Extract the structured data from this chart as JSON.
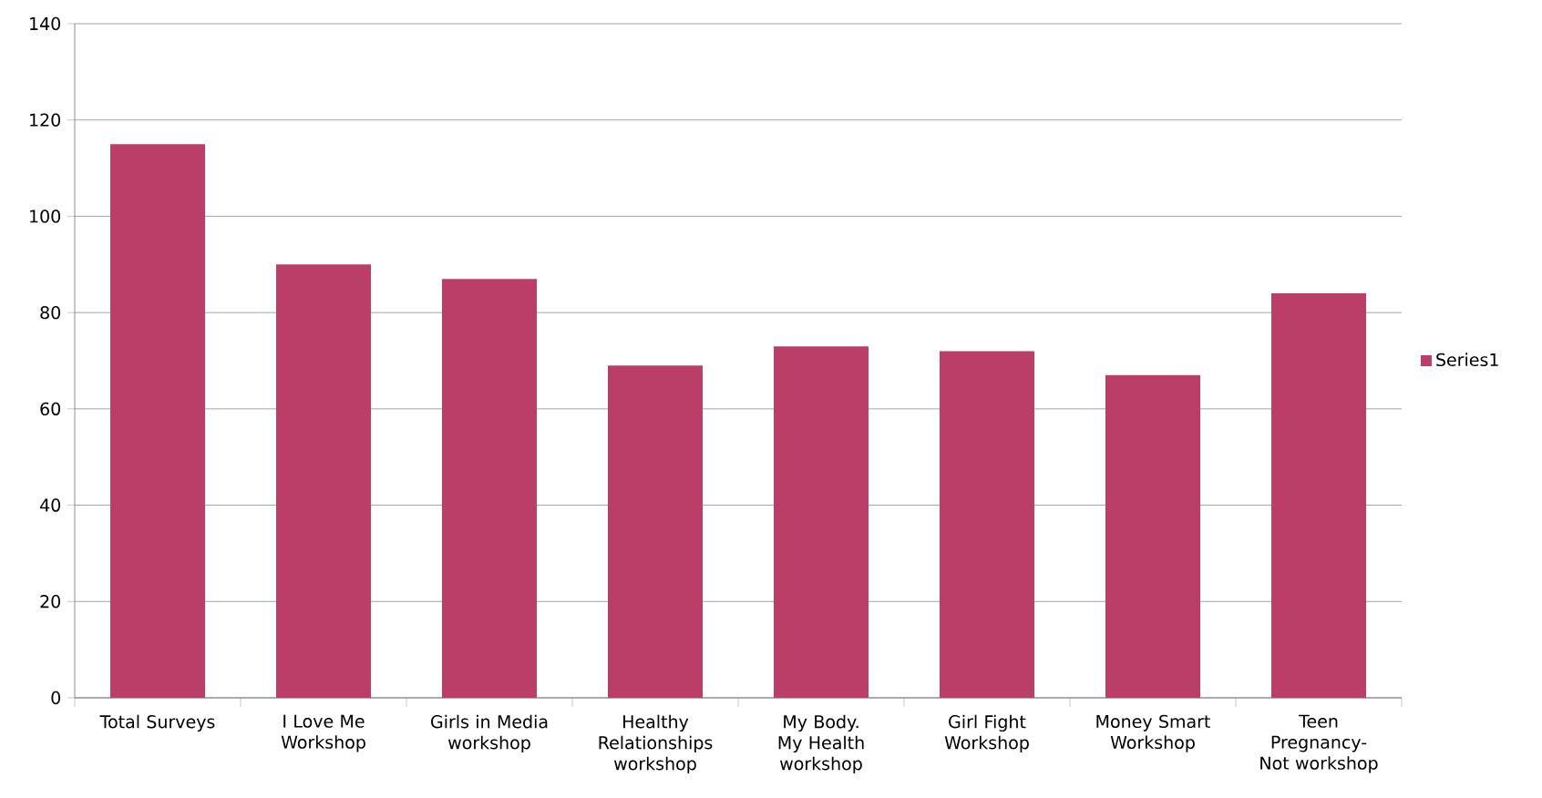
{
  "chart_data": {
    "type": "bar",
    "categories": [
      "Total Surveys",
      "I Love Me Workshop",
      "Girls in Media workshop",
      "Healthy Relationships workshop",
      "My Body. My Health workshop",
      "Girl Fight Workshop",
      "Money Smart Workshop",
      "Teen Pregnancy-Not workshop"
    ],
    "series": [
      {
        "name": "Series1",
        "color": "#bb3e69",
        "values": [
          115,
          90,
          87,
          69,
          73,
          72,
          67,
          84
        ]
      }
    ],
    "ylim": [
      0,
      140
    ],
    "yticks": [
      0,
      20,
      40,
      60,
      80,
      100,
      120,
      140
    ],
    "grid": "y",
    "legend": "right"
  }
}
